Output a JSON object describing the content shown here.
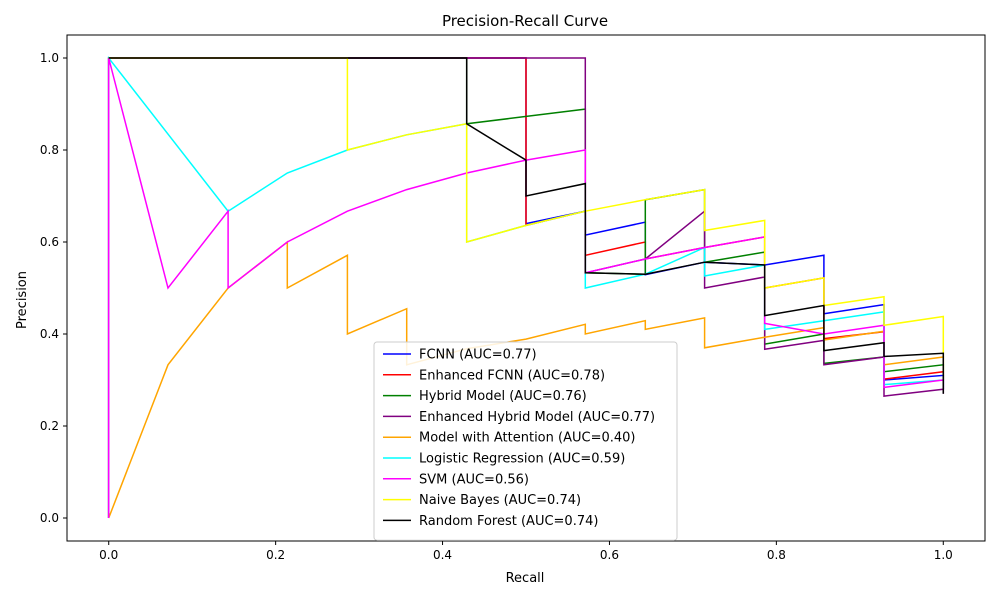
{
  "chart_data": {
    "type": "line",
    "title": "Precision-Recall Curve",
    "xlabel": "Recall",
    "ylabel": "Precision",
    "xlim": [
      -0.05,
      1.05
    ],
    "ylim": [
      -0.05,
      1.05
    ],
    "xticks": [
      0.0,
      0.2,
      0.4,
      0.6,
      0.8,
      1.0
    ],
    "xtick_labels": [
      "0.0",
      "0.2",
      "0.4",
      "0.6",
      "0.8",
      "1.0"
    ],
    "yticks": [
      0.0,
      0.2,
      0.4,
      0.6,
      0.8,
      1.0
    ],
    "ytick_labels": [
      "0.0",
      "0.2",
      "0.4",
      "0.6",
      "0.8",
      "1.0"
    ],
    "grid": false,
    "legend_position": "lower-center",
    "series": [
      {
        "name": "FCNN (AUC=0.77)",
        "color": "#0000ff",
        "points": [
          [
            0,
            0
          ],
          [
            0,
            1
          ],
          [
            0.5,
            1
          ],
          [
            0.5,
            0.64
          ],
          [
            0.571,
            0.667
          ],
          [
            0.571,
            0.615
          ],
          [
            0.643,
            0.643
          ],
          [
            0.643,
            0.529
          ],
          [
            0.714,
            0.556
          ],
          [
            0.786,
            0.55
          ],
          [
            0.857,
            0.571
          ],
          [
            0.857,
            0.444
          ],
          [
            0.929,
            0.464
          ],
          [
            0.929,
            0.3
          ],
          [
            1.0,
            0.31
          ],
          [
            1.0,
            0.28
          ]
        ]
      },
      {
        "name": "Enhanced FCNN (AUC=0.78)",
        "color": "#ff0000",
        "points": [
          [
            0,
            0
          ],
          [
            0,
            1
          ],
          [
            0.5,
            1
          ],
          [
            0.5,
            0.636
          ],
          [
            0.571,
            0.667
          ],
          [
            0.571,
            0.571
          ],
          [
            0.643,
            0.6
          ],
          [
            0.643,
            0.563
          ],
          [
            0.714,
            0.588
          ],
          [
            0.786,
            0.611
          ],
          [
            0.786,
            0.5
          ],
          [
            0.857,
            0.522
          ],
          [
            0.857,
            0.39
          ],
          [
            0.929,
            0.405
          ],
          [
            0.929,
            0.302
          ],
          [
            1.0,
            0.318
          ],
          [
            1.0,
            0.28
          ]
        ]
      },
      {
        "name": "Hybrid Model (AUC=0.76)",
        "color": "#008000",
        "points": [
          [
            0,
            0
          ],
          [
            0,
            1
          ],
          [
            0.429,
            1
          ],
          [
            0.429,
            0.857
          ],
          [
            0.571,
            0.889
          ],
          [
            0.571,
            0.533
          ],
          [
            0.643,
            0.53
          ],
          [
            0.643,
            0.692
          ],
          [
            0.714,
            0.714
          ],
          [
            0.714,
            0.556
          ],
          [
            0.786,
            0.578
          ],
          [
            0.786,
            0.378
          ],
          [
            0.857,
            0.4
          ],
          [
            0.857,
            0.336
          ],
          [
            0.929,
            0.35
          ],
          [
            0.929,
            0.318
          ],
          [
            1.0,
            0.333
          ],
          [
            1.0,
            0.3
          ]
        ]
      },
      {
        "name": "Enhanced Hybrid Model (AUC=0.77)",
        "color": "#800080",
        "points": [
          [
            0,
            0
          ],
          [
            0,
            1
          ],
          [
            0.571,
            1
          ],
          [
            0.571,
            0.533
          ],
          [
            0.643,
            0.563
          ],
          [
            0.714,
            0.667
          ],
          [
            0.714,
            0.5
          ],
          [
            0.786,
            0.524
          ],
          [
            0.786,
            0.367
          ],
          [
            0.857,
            0.386
          ],
          [
            0.857,
            0.333
          ],
          [
            0.929,
            0.35
          ],
          [
            0.929,
            0.265
          ],
          [
            1.0,
            0.28
          ],
          [
            1.0,
            0.27
          ]
        ]
      },
      {
        "name": "Model with Attention (AUC=0.40)",
        "color": "#ffa500",
        "points": [
          [
            0,
            0
          ],
          [
            0.071,
            0.333
          ],
          [
            0.143,
            0.5
          ],
          [
            0.214,
            0.6
          ],
          [
            0.214,
            0.5
          ],
          [
            0.286,
            0.571
          ],
          [
            0.286,
            0.4
          ],
          [
            0.357,
            0.455
          ],
          [
            0.357,
            0.333
          ],
          [
            0.429,
            0.368
          ],
          [
            0.5,
            0.389
          ],
          [
            0.571,
            0.421
          ],
          [
            0.571,
            0.4
          ],
          [
            0.643,
            0.429
          ],
          [
            0.643,
            0.41
          ],
          [
            0.714,
            0.435
          ],
          [
            0.714,
            0.37
          ],
          [
            0.786,
            0.393
          ],
          [
            0.857,
            0.414
          ],
          [
            0.857,
            0.387
          ],
          [
            0.929,
            0.406
          ],
          [
            0.929,
            0.333
          ],
          [
            1.0,
            0.35
          ],
          [
            1.0,
            0.32
          ]
        ]
      },
      {
        "name": "Logistic Regression (AUC=0.59)",
        "color": "#00ffff",
        "points": [
          [
            0,
            0
          ],
          [
            0,
            1
          ],
          [
            0.143,
            0.667
          ],
          [
            0.214,
            0.75
          ],
          [
            0.286,
            0.8
          ],
          [
            0.357,
            0.833
          ],
          [
            0.429,
            0.857
          ],
          [
            0.429,
            0.6
          ],
          [
            0.5,
            0.636
          ],
          [
            0.571,
            0.667
          ],
          [
            0.571,
            0.5
          ],
          [
            0.643,
            0.53
          ],
          [
            0.714,
            0.588
          ],
          [
            0.714,
            0.526
          ],
          [
            0.786,
            0.55
          ],
          [
            0.786,
            0.41
          ],
          [
            0.857,
            0.429
          ],
          [
            0.929,
            0.448
          ],
          [
            0.929,
            0.29
          ],
          [
            1.0,
            0.3
          ],
          [
            1.0,
            0.28
          ]
        ]
      },
      {
        "name": "SVM (AUC=0.56)",
        "color": "#ff00ff",
        "points": [
          [
            0,
            0
          ],
          [
            0,
            1
          ],
          [
            0.071,
            0.5
          ],
          [
            0.143,
            0.667
          ],
          [
            0.143,
            0.5
          ],
          [
            0.214,
            0.6
          ],
          [
            0.286,
            0.667
          ],
          [
            0.357,
            0.714
          ],
          [
            0.429,
            0.75
          ],
          [
            0.5,
            0.778
          ],
          [
            0.571,
            0.8
          ],
          [
            0.571,
            0.533
          ],
          [
            0.643,
            0.563
          ],
          [
            0.714,
            0.588
          ],
          [
            0.786,
            0.611
          ],
          [
            0.786,
            0.423
          ],
          [
            0.857,
            0.4
          ],
          [
            0.929,
            0.419
          ],
          [
            0.929,
            0.284
          ],
          [
            1.0,
            0.3
          ],
          [
            1.0,
            0.28
          ]
        ]
      },
      {
        "name": "Naive Bayes (AUC=0.74)",
        "color": "#ffff00",
        "points": [
          [
            0,
            1
          ],
          [
            0.286,
            1
          ],
          [
            0.286,
            0.8
          ],
          [
            0.357,
            0.833
          ],
          [
            0.429,
            0.857
          ],
          [
            0.429,
            0.6
          ],
          [
            0.5,
            0.636
          ],
          [
            0.571,
            0.667
          ],
          [
            0.643,
            0.692
          ],
          [
            0.714,
            0.714
          ],
          [
            0.714,
            0.625
          ],
          [
            0.786,
            0.647
          ],
          [
            0.786,
            0.5
          ],
          [
            0.857,
            0.522
          ],
          [
            0.857,
            0.462
          ],
          [
            0.929,
            0.481
          ],
          [
            0.929,
            0.419
          ],
          [
            1.0,
            0.438
          ],
          [
            1.0,
            0.3
          ]
        ]
      },
      {
        "name": "Random Forest (AUC=0.74)",
        "color": "#000000",
        "points": [
          [
            0,
            1
          ],
          [
            0.429,
            1
          ],
          [
            0.429,
            0.857
          ],
          [
            0.5,
            0.778
          ],
          [
            0.5,
            0.7
          ],
          [
            0.571,
            0.727
          ],
          [
            0.571,
            0.533
          ],
          [
            0.643,
            0.53
          ],
          [
            0.714,
            0.556
          ],
          [
            0.786,
            0.55
          ],
          [
            0.786,
            0.44
          ],
          [
            0.857,
            0.462
          ],
          [
            0.857,
            0.364
          ],
          [
            0.929,
            0.381
          ],
          [
            0.929,
            0.351
          ],
          [
            1.0,
            0.358
          ],
          [
            1.0,
            0.27
          ]
        ]
      }
    ]
  }
}
